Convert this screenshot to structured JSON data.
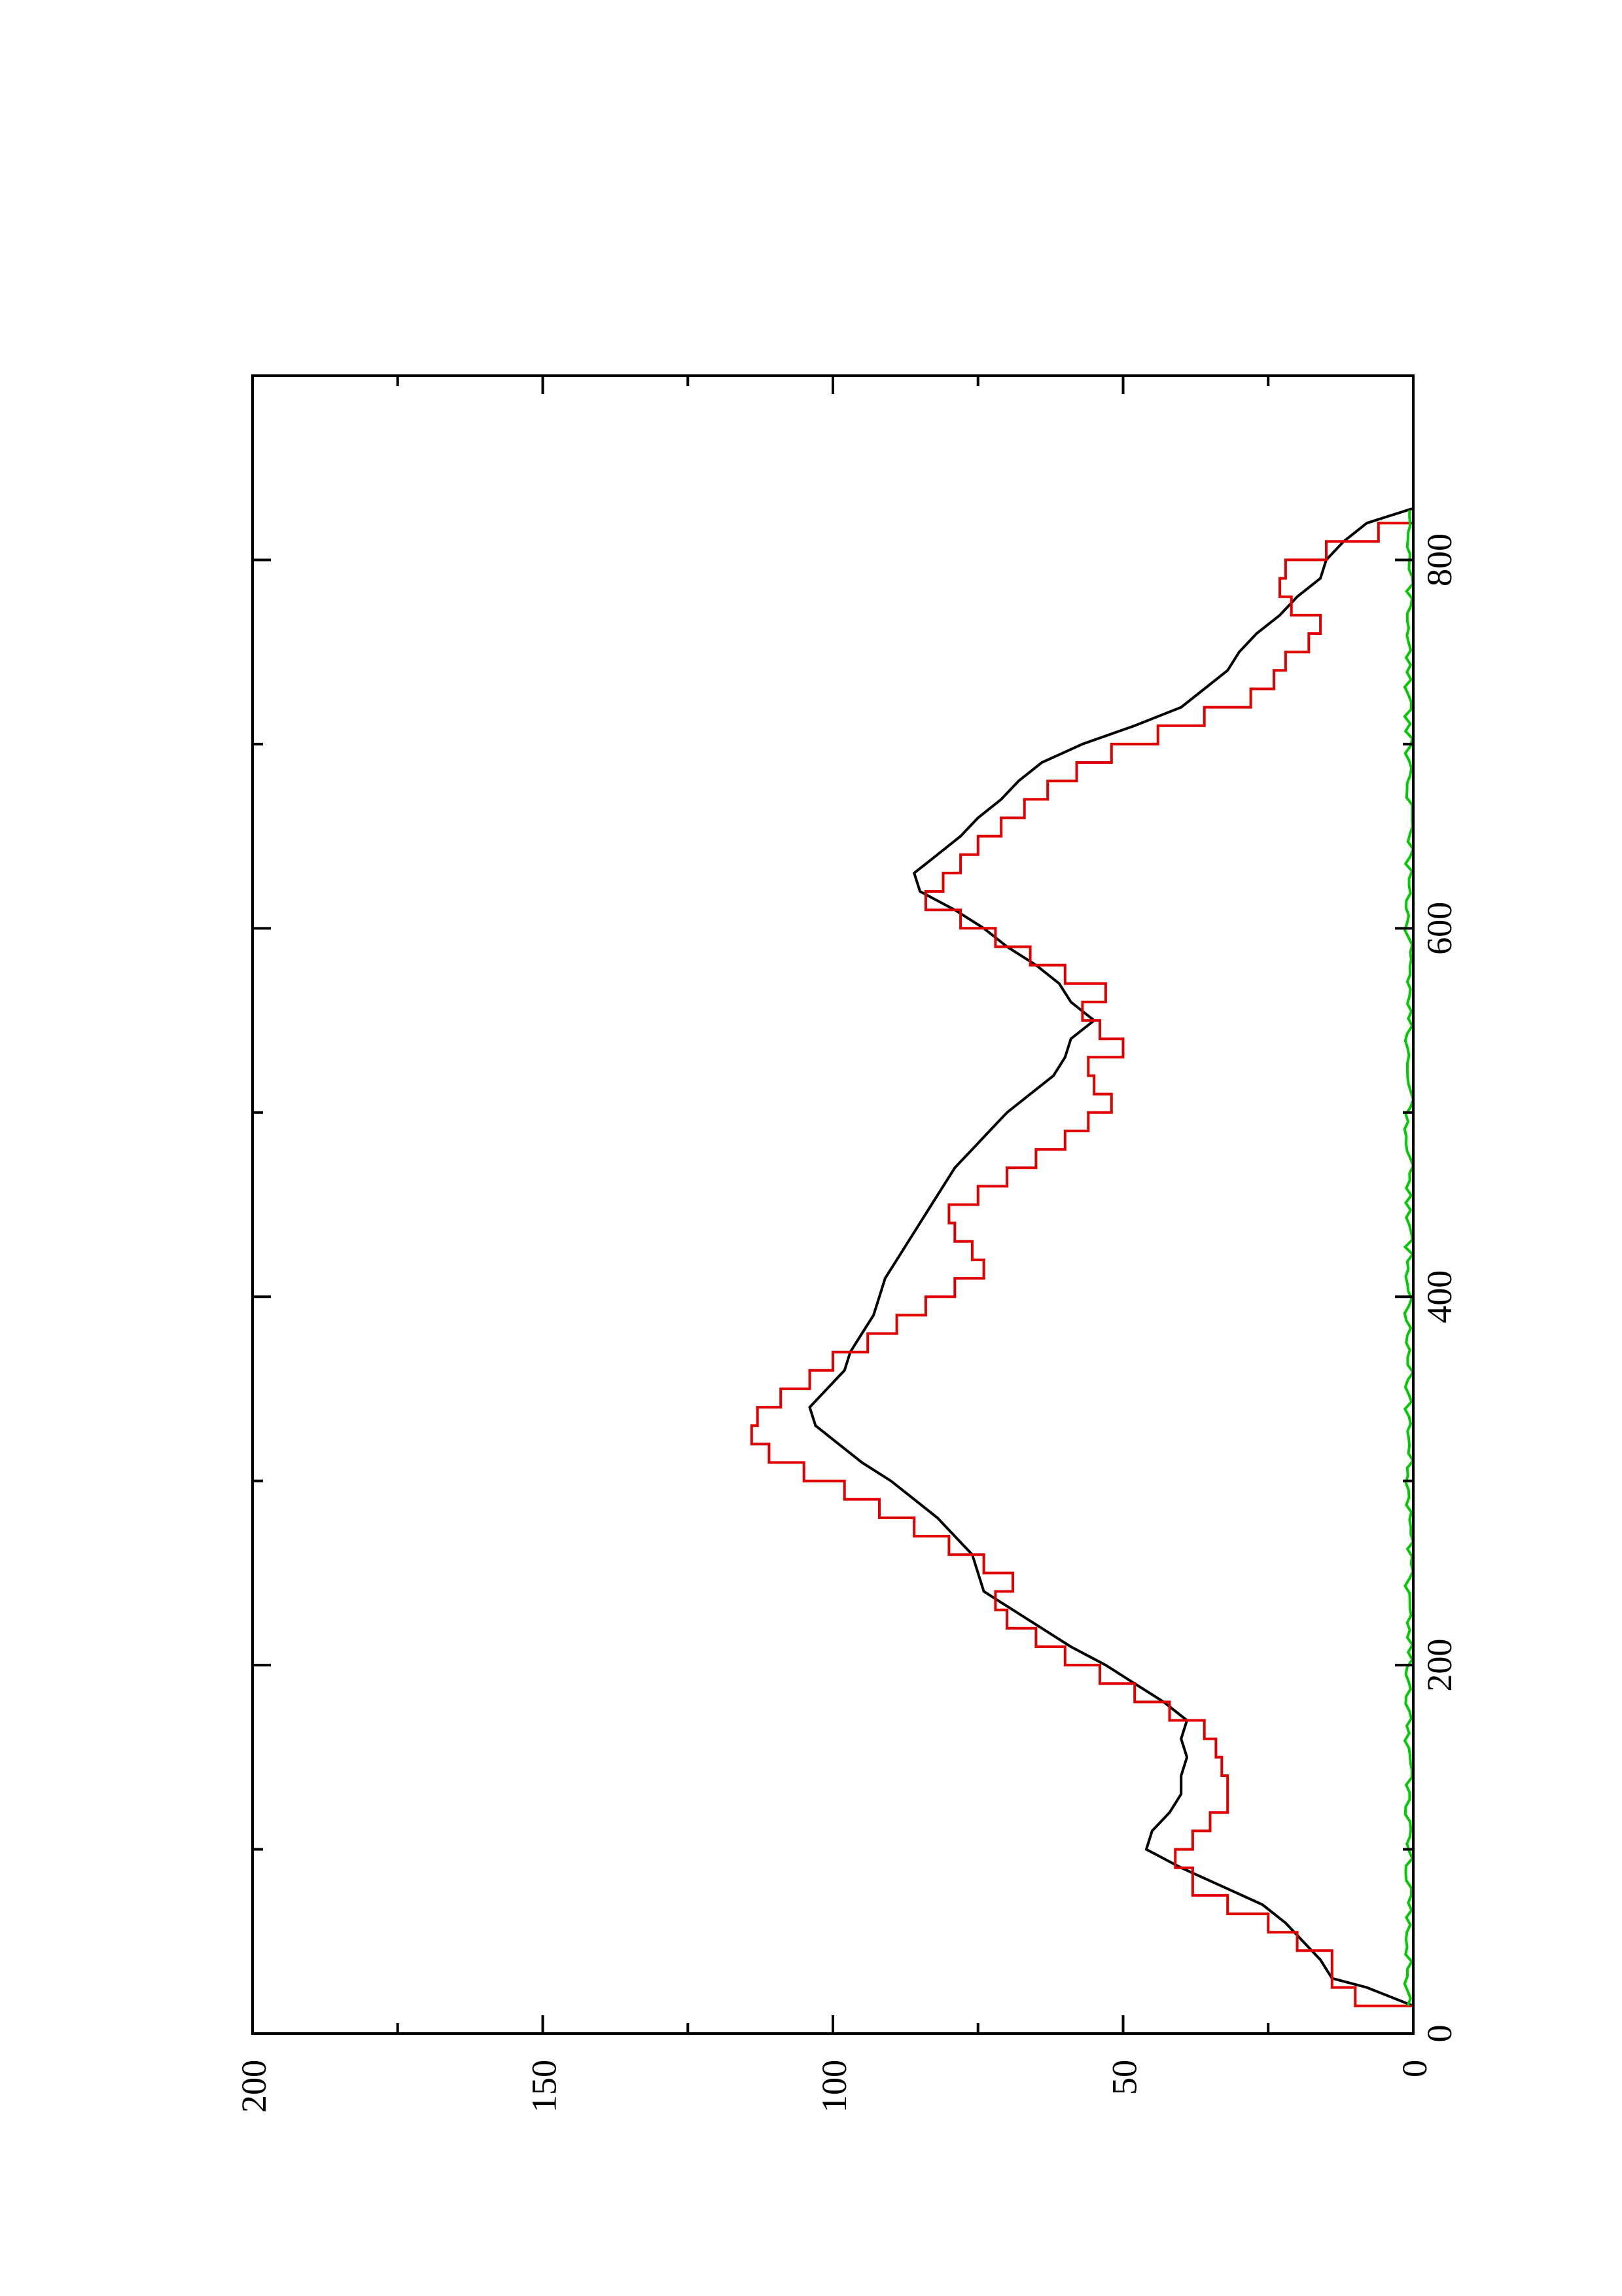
{
  "chart_data": {
    "type": "line",
    "title": "",
    "xlabel": "",
    "ylabel": "",
    "orientation": "rotated-90-ccw",
    "grid": false,
    "legend": "none",
    "xlim": [
      0,
      900
    ],
    "ylim": [
      0,
      200
    ],
    "x_ticks": [
      "0",
      "200",
      "400",
      "600",
      "800"
    ],
    "y_ticks": [
      "0",
      "50",
      "100",
      "150",
      "200"
    ],
    "x_minor_ticks": [
      100,
      300,
      500,
      700
    ],
    "y_minor_ticks": [
      25,
      75,
      125,
      175
    ],
    "series": [
      {
        "color": "#000000",
        "step": false,
        "points": [
          [
            15,
            0
          ],
          [
            25,
            8
          ],
          [
            30,
            14
          ],
          [
            40,
            16
          ],
          [
            50,
            19
          ],
          [
            60,
            22
          ],
          [
            70,
            26
          ],
          [
            80,
            33
          ],
          [
            90,
            40
          ],
          [
            100,
            46
          ],
          [
            110,
            45
          ],
          [
            120,
            42
          ],
          [
            130,
            40
          ],
          [
            140,
            40
          ],
          [
            150,
            39
          ],
          [
            160,
            40
          ],
          [
            170,
            39
          ],
          [
            180,
            43
          ],
          [
            190,
            48
          ],
          [
            200,
            53
          ],
          [
            210,
            59
          ],
          [
            220,
            64
          ],
          [
            230,
            69
          ],
          [
            240,
            74
          ],
          [
            250,
            75
          ],
          [
            260,
            76
          ],
          [
            270,
            79
          ],
          [
            280,
            82
          ],
          [
            290,
            86
          ],
          [
            300,
            90
          ],
          [
            310,
            95
          ],
          [
            320,
            99
          ],
          [
            330,
            103
          ],
          [
            340,
            104
          ],
          [
            350,
            101
          ],
          [
            360,
            98
          ],
          [
            370,
            97
          ],
          [
            380,
            95
          ],
          [
            390,
            93
          ],
          [
            400,
            92
          ],
          [
            410,
            91
          ],
          [
            420,
            89
          ],
          [
            430,
            87
          ],
          [
            440,
            85
          ],
          [
            450,
            83
          ],
          [
            460,
            81
          ],
          [
            470,
            79
          ],
          [
            480,
            76
          ],
          [
            490,
            73
          ],
          [
            500,
            70
          ],
          [
            510,
            66
          ],
          [
            520,
            62
          ],
          [
            530,
            60
          ],
          [
            540,
            59
          ],
          [
            550,
            55
          ],
          [
            560,
            59
          ],
          [
            570,
            61
          ],
          [
            580,
            65
          ],
          [
            590,
            70
          ],
          [
            600,
            74
          ],
          [
            610,
            79
          ],
          [
            620,
            85
          ],
          [
            630,
            86
          ],
          [
            640,
            82
          ],
          [
            650,
            78
          ],
          [
            660,
            75
          ],
          [
            670,
            71
          ],
          [
            680,
            68
          ],
          [
            690,
            64
          ],
          [
            700,
            57
          ],
          [
            710,
            48
          ],
          [
            720,
            40
          ],
          [
            730,
            36
          ],
          [
            740,
            32
          ],
          [
            750,
            30
          ],
          [
            760,
            27
          ],
          [
            770,
            23
          ],
          [
            780,
            20
          ],
          [
            790,
            16
          ],
          [
            800,
            15
          ],
          [
            810,
            12
          ],
          [
            820,
            8
          ],
          [
            828,
            0
          ]
        ]
      },
      {
        "color": "#e00000",
        "step": true,
        "points": [
          [
            15,
            0
          ],
          [
            25,
            10
          ],
          [
            35,
            14
          ],
          [
            45,
            14
          ],
          [
            55,
            20
          ],
          [
            65,
            25
          ],
          [
            75,
            32
          ],
          [
            90,
            38
          ],
          [
            100,
            41
          ],
          [
            110,
            38
          ],
          [
            120,
            35
          ],
          [
            130,
            32
          ],
          [
            140,
            32
          ],
          [
            150,
            33
          ],
          [
            160,
            34
          ],
          [
            170,
            36
          ],
          [
            180,
            42
          ],
          [
            190,
            48
          ],
          [
            200,
            54
          ],
          [
            210,
            60
          ],
          [
            220,
            65
          ],
          [
            230,
            70
          ],
          [
            240,
            72
          ],
          [
            250,
            69
          ],
          [
            260,
            74
          ],
          [
            270,
            80
          ],
          [
            280,
            86
          ],
          [
            290,
            92
          ],
          [
            300,
            98
          ],
          [
            310,
            105
          ],
          [
            320,
            111
          ],
          [
            330,
            114
          ],
          [
            340,
            113
          ],
          [
            350,
            109
          ],
          [
            360,
            104
          ],
          [
            370,
            100
          ],
          [
            380,
            94
          ],
          [
            390,
            89
          ],
          [
            400,
            84
          ],
          [
            410,
            79
          ],
          [
            420,
            74
          ],
          [
            430,
            76
          ],
          [
            440,
            79
          ],
          [
            450,
            80
          ],
          [
            460,
            75
          ],
          [
            470,
            70
          ],
          [
            480,
            65
          ],
          [
            490,
            60
          ],
          [
            500,
            56
          ],
          [
            510,
            52
          ],
          [
            520,
            55
          ],
          [
            530,
            56
          ],
          [
            540,
            50
          ],
          [
            550,
            54
          ],
          [
            560,
            57
          ],
          [
            570,
            53
          ],
          [
            580,
            60
          ],
          [
            590,
            66
          ],
          [
            600,
            72
          ],
          [
            610,
            78
          ],
          [
            620,
            84
          ],
          [
            630,
            81
          ],
          [
            640,
            78
          ],
          [
            650,
            75
          ],
          [
            660,
            71
          ],
          [
            670,
            67
          ],
          [
            680,
            63
          ],
          [
            690,
            58
          ],
          [
            700,
            52
          ],
          [
            710,
            44
          ],
          [
            720,
            36
          ],
          [
            730,
            28
          ],
          [
            740,
            24
          ],
          [
            750,
            22
          ],
          [
            760,
            18
          ],
          [
            770,
            16
          ],
          [
            780,
            21
          ],
          [
            790,
            23
          ],
          [
            800,
            22
          ],
          [
            810,
            15
          ],
          [
            820,
            6
          ],
          [
            828,
            0
          ]
        ]
      },
      {
        "color": "#00cc00",
        "step": false,
        "noise_level": 1.5
      }
    ]
  }
}
